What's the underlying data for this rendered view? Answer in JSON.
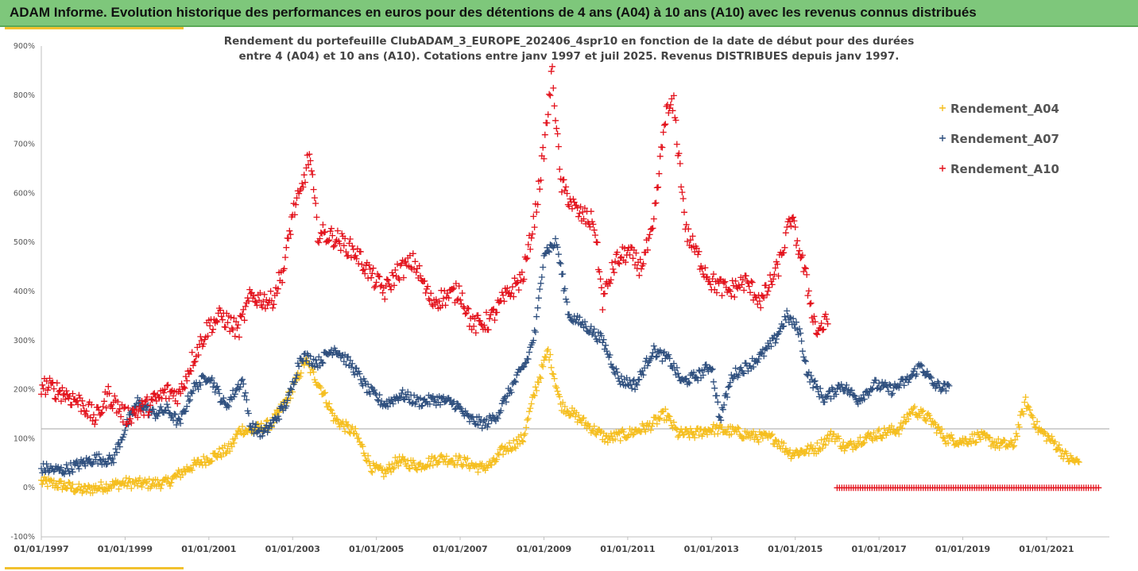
{
  "title": "ADAM Informe. Evolution historique des performances en euros pour des détentions de 4 ans (A04) à 10 ans (A10) avec les revenus connus distribués",
  "chart_data": {
    "type": "scatter",
    "subtitle_line1": "Rendement du portefeuille ClubADAM_3_EUROPE_202406_4spr10  en fonction de la date de début pour des durées",
    "subtitle_line2": "entre 4 (A04) et 10 ans (A10). Cotations entre janv 1997 et juil 2025. Revenus DISTRIBUES depuis janv 1997.",
    "y_ticks": [
      "900%",
      "800%",
      "700%",
      "600%",
      "500%",
      "400%",
      "300%",
      "200%",
      "100%",
      "0%",
      "-100%"
    ],
    "x_ticks": [
      "01/01/1997",
      "01/01/1999",
      "01/01/2001",
      "01/01/2003",
      "01/01/2005",
      "01/01/2007",
      "01/01/2009",
      "01/01/2011",
      "01/01/2013",
      "01/01/2015",
      "01/01/2017",
      "01/01/2019",
      "01/01/2021"
    ],
    "ylim": [
      -100,
      900
    ],
    "xlim": [
      1997.0,
      2022.5
    ],
    "reference_line": 120,
    "legend_position": "top-right",
    "grid": false,
    "marker": "+",
    "series": [
      {
        "name": "Rendement_A04",
        "color": "#f5be1e",
        "points": [
          [
            1997.0,
            12
          ],
          [
            1997.5,
            5
          ],
          [
            1998.0,
            -5
          ],
          [
            1998.5,
            3
          ],
          [
            1999.0,
            10
          ],
          [
            1999.5,
            8
          ],
          [
            2000.0,
            10
          ],
          [
            2000.5,
            40
          ],
          [
            2001.0,
            60
          ],
          [
            2001.5,
            80
          ],
          [
            2001.75,
            120
          ],
          [
            2002.0,
            115
          ],
          [
            2002.5,
            130
          ],
          [
            2003.0,
            200
          ],
          [
            2003.3,
            260
          ],
          [
            2003.7,
            200
          ],
          [
            2004.0,
            140
          ],
          [
            2004.5,
            110
          ],
          [
            2004.9,
            40
          ],
          [
            2005.2,
            30
          ],
          [
            2005.5,
            55
          ],
          [
            2006.0,
            45
          ],
          [
            2006.5,
            60
          ],
          [
            2007.0,
            55
          ],
          [
            2007.5,
            40
          ],
          [
            2007.8,
            50
          ],
          [
            2008.0,
            75
          ],
          [
            2008.5,
            100
          ],
          [
            2008.8,
            200
          ],
          [
            2009.1,
            280
          ],
          [
            2009.4,
            170
          ],
          [
            2010.0,
            130
          ],
          [
            2010.5,
            100
          ],
          [
            2011.0,
            110
          ],
          [
            2011.5,
            125
          ],
          [
            2011.9,
            150
          ],
          [
            2012.2,
            110
          ],
          [
            2012.6,
            110
          ],
          [
            2013.0,
            120
          ],
          [
            2013.5,
            115
          ],
          [
            2014.0,
            105
          ],
          [
            2014.5,
            100
          ],
          [
            2014.9,
            70
          ],
          [
            2015.5,
            80
          ],
          [
            2015.9,
            110
          ],
          [
            2016.2,
            80
          ],
          [
            2016.6,
            100
          ],
          [
            2017.0,
            110
          ],
          [
            2017.5,
            120
          ],
          [
            2017.8,
            160
          ],
          [
            2018.2,
            140
          ],
          [
            2018.6,
            100
          ],
          [
            2019.0,
            95
          ],
          [
            2019.4,
            105
          ],
          [
            2019.8,
            90
          ],
          [
            2020.2,
            85
          ],
          [
            2020.5,
            175
          ],
          [
            2020.8,
            120
          ],
          [
            2021.2,
            90
          ],
          [
            2021.5,
            60
          ],
          [
            2021.8,
            50
          ]
        ]
      },
      {
        "name": "Rendement_A07",
        "color": "#2e4f7e",
        "points": [
          [
            1997.0,
            40
          ],
          [
            1997.5,
            35
          ],
          [
            1998.0,
            50
          ],
          [
            1998.3,
            60
          ],
          [
            1998.7,
            55
          ],
          [
            1999.0,
            120
          ],
          [
            1999.3,
            175
          ],
          [
            1999.7,
            150
          ],
          [
            2000.0,
            160
          ],
          [
            2000.3,
            130
          ],
          [
            2000.6,
            200
          ],
          [
            2001.0,
            230
          ],
          [
            2001.4,
            165
          ],
          [
            2001.8,
            220
          ],
          [
            2002.0,
            125
          ],
          [
            2002.3,
            110
          ],
          [
            2002.6,
            140
          ],
          [
            2002.9,
            180
          ],
          [
            2003.2,
            270
          ],
          [
            2003.6,
            255
          ],
          [
            2004.0,
            285
          ],
          [
            2004.4,
            250
          ],
          [
            2004.8,
            200
          ],
          [
            2005.2,
            170
          ],
          [
            2005.6,
            190
          ],
          [
            2006.0,
            175
          ],
          [
            2006.5,
            180
          ],
          [
            2006.9,
            170
          ],
          [
            2007.2,
            140
          ],
          [
            2007.6,
            130
          ],
          [
            2007.9,
            150
          ],
          [
            2008.2,
            200
          ],
          [
            2008.6,
            260
          ],
          [
            2008.8,
            320
          ],
          [
            2009.0,
            480
          ],
          [
            2009.3,
            500
          ],
          [
            2009.6,
            350
          ],
          [
            2010.0,
            330
          ],
          [
            2010.4,
            300
          ],
          [
            2010.8,
            220
          ],
          [
            2011.2,
            210
          ],
          [
            2011.6,
            280
          ],
          [
            2012.0,
            260
          ],
          [
            2012.3,
            215
          ],
          [
            2012.7,
            230
          ],
          [
            2013.0,
            250
          ],
          [
            2013.2,
            140
          ],
          [
            2013.5,
            230
          ],
          [
            2013.9,
            250
          ],
          [
            2014.2,
            270
          ],
          [
            2014.5,
            300
          ],
          [
            2014.8,
            350
          ],
          [
            2015.1,
            320
          ],
          [
            2015.3,
            230
          ],
          [
            2015.7,
            180
          ],
          [
            2016.1,
            210
          ],
          [
            2016.5,
            180
          ],
          [
            2016.9,
            210
          ],
          [
            2017.3,
            200
          ],
          [
            2017.7,
            220
          ],
          [
            2018.0,
            250
          ],
          [
            2018.3,
            210
          ],
          [
            2018.7,
            200
          ]
        ]
      },
      {
        "name": "Rendement_A10",
        "color": "#e3111b",
        "points": [
          [
            1997.0,
            210
          ],
          [
            1997.5,
            195
          ],
          [
            1998.0,
            170
          ],
          [
            1998.3,
            140
          ],
          [
            1998.6,
            190
          ],
          [
            1999.0,
            145
          ],
          [
            1999.5,
            165
          ],
          [
            2000.0,
            195
          ],
          [
            2000.3,
            190
          ],
          [
            2000.6,
            260
          ],
          [
            2001.0,
            330
          ],
          [
            2001.3,
            350
          ],
          [
            2001.7,
            320
          ],
          [
            2002.0,
            390
          ],
          [
            2002.5,
            380
          ],
          [
            2002.8,
            450
          ],
          [
            2003.0,
            560
          ],
          [
            2003.2,
            600
          ],
          [
            2003.4,
            680
          ],
          [
            2003.6,
            520
          ],
          [
            2004.0,
            510
          ],
          [
            2004.5,
            480
          ],
          [
            2004.9,
            430
          ],
          [
            2005.2,
            400
          ],
          [
            2005.5,
            440
          ],
          [
            2005.9,
            460
          ],
          [
            2006.3,
            380
          ],
          [
            2006.7,
            390
          ],
          [
            2007.0,
            400
          ],
          [
            2007.3,
            330
          ],
          [
            2007.7,
            340
          ],
          [
            2008.0,
            380
          ],
          [
            2008.5,
            430
          ],
          [
            2008.8,
            560
          ],
          [
            2009.0,
            690
          ],
          [
            2009.2,
            850
          ],
          [
            2009.4,
            620
          ],
          [
            2009.8,
            560
          ],
          [
            2010.2,
            540
          ],
          [
            2010.4,
            380
          ],
          [
            2010.7,
            460
          ],
          [
            2011.0,
            480
          ],
          [
            2011.3,
            450
          ],
          [
            2011.6,
            520
          ],
          [
            2011.9,
            760
          ],
          [
            2012.1,
            780
          ],
          [
            2012.4,
            520
          ],
          [
            2012.8,
            450
          ],
          [
            2013.0,
            420
          ],
          [
            2013.4,
            400
          ],
          [
            2013.8,
            420
          ],
          [
            2014.2,
            380
          ],
          [
            2014.6,
            450
          ],
          [
            2014.9,
            550
          ],
          [
            2015.2,
            450
          ],
          [
            2015.5,
            320
          ],
          [
            2015.8,
            340
          ]
        ]
      },
      {
        "name": "",
        "color": "#e3111b",
        "points": [
          [
            2016.0,
            0
          ],
          [
            2016.5,
            0
          ],
          [
            2017.0,
            0
          ],
          [
            2017.5,
            0
          ],
          [
            2018.0,
            0
          ],
          [
            2018.5,
            0
          ],
          [
            2019.0,
            0
          ],
          [
            2019.5,
            0
          ],
          [
            2020.0,
            0
          ],
          [
            2020.5,
            0
          ],
          [
            2021.0,
            0
          ],
          [
            2021.5,
            0
          ],
          [
            2022.0,
            0
          ],
          [
            2022.3,
            0
          ]
        ]
      }
    ]
  }
}
